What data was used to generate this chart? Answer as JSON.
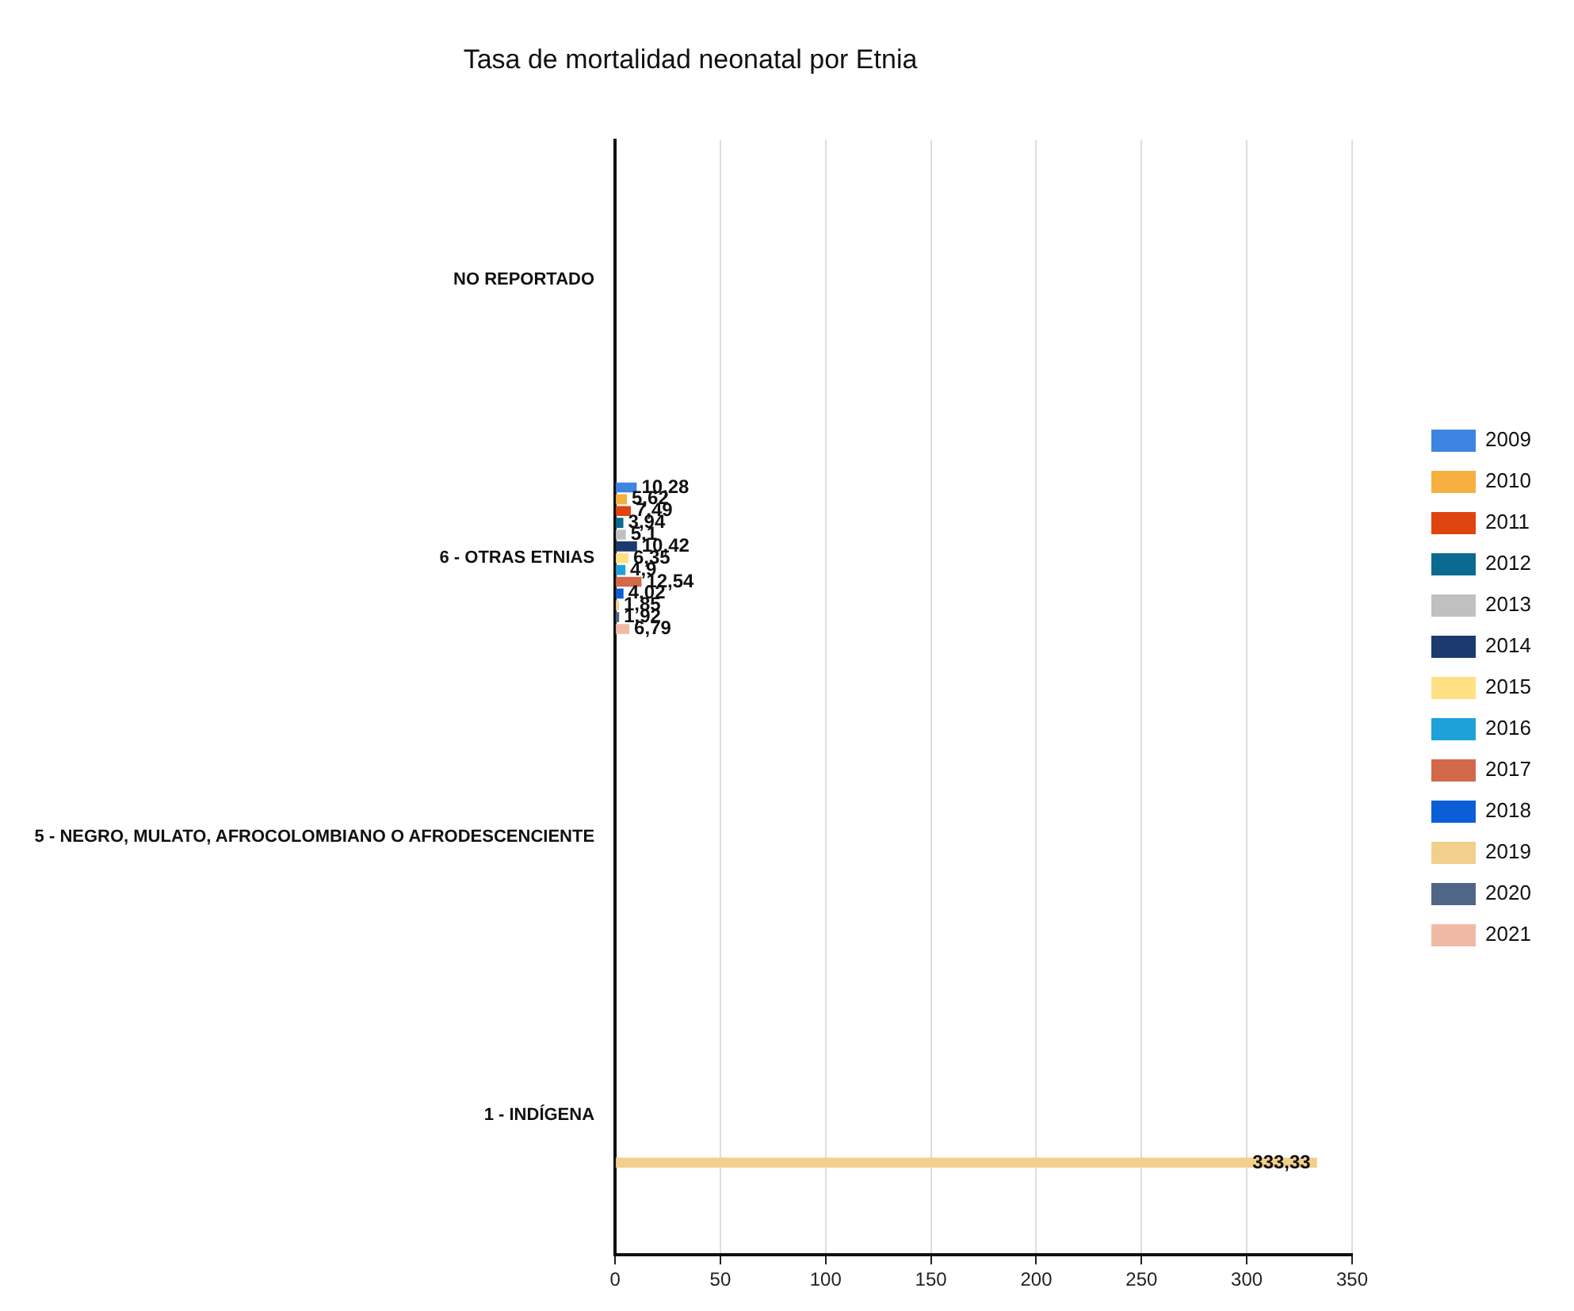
{
  "chart_data": {
    "type": "bar",
    "orientation": "horizontal",
    "title": "Tasa de mortalidad neonatal por Etnia",
    "categories": [
      "NO REPORTADO",
      "6 - OTRAS ETNIAS",
      "5 - NEGRO, MULATO, AFROCOLOMBIANO O AFRODESCENCIENTE",
      "1 - INDÍGENA"
    ],
    "series": [
      {
        "name": "2009",
        "color": "#3d85e0",
        "values": [
          null,
          10.28,
          null,
          null
        ],
        "value_labels": [
          null,
          "10,28",
          null,
          null
        ]
      },
      {
        "name": "2010",
        "color": "#f6b040",
        "values": [
          null,
          5.62,
          null,
          null
        ],
        "value_labels": [
          null,
          "5,62",
          null,
          null
        ]
      },
      {
        "name": "2011",
        "color": "#e0440e",
        "values": [
          null,
          7.49,
          null,
          null
        ],
        "value_labels": [
          null,
          "7,49",
          null,
          null
        ]
      },
      {
        "name": "2012",
        "color": "#0b6a8f",
        "values": [
          null,
          3.94,
          null,
          null
        ],
        "value_labels": [
          null,
          "3,94",
          null,
          null
        ]
      },
      {
        "name": "2013",
        "color": "#c0c0c0",
        "values": [
          null,
          5.1,
          null,
          null
        ],
        "value_labels": [
          null,
          "5,1",
          null,
          null
        ]
      },
      {
        "name": "2014",
        "color": "#1c3a6e",
        "values": [
          null,
          10.42,
          null,
          null
        ],
        "value_labels": [
          null,
          "10,42",
          null,
          null
        ]
      },
      {
        "name": "2015",
        "color": "#ffe082",
        "values": [
          null,
          6.35,
          null,
          null
        ],
        "value_labels": [
          null,
          "6,35",
          null,
          null
        ]
      },
      {
        "name": "2016",
        "color": "#1ea1d8",
        "values": [
          null,
          4.9,
          null,
          null
        ],
        "value_labels": [
          null,
          "4,9",
          null,
          null
        ]
      },
      {
        "name": "2017",
        "color": "#d2694b",
        "values": [
          null,
          12.54,
          null,
          null
        ],
        "value_labels": [
          null,
          "12,54",
          null,
          null
        ]
      },
      {
        "name": "2018",
        "color": "#0b5fd6",
        "values": [
          null,
          4.02,
          null,
          null
        ],
        "value_labels": [
          null,
          "4,02",
          null,
          null
        ]
      },
      {
        "name": "2019",
        "color": "#f2cf8c",
        "values": [
          null,
          1.85,
          null,
          333.33
        ],
        "value_labels": [
          null,
          "1,85",
          null,
          "333,33"
        ]
      },
      {
        "name": "2020",
        "color": "#4f6687",
        "values": [
          null,
          1.92,
          null,
          null
        ],
        "value_labels": [
          null,
          "1,92",
          null,
          null
        ]
      },
      {
        "name": "2021",
        "color": "#f0b9a6",
        "values": [
          null,
          6.79,
          null,
          null
        ],
        "value_labels": [
          null,
          "6,79",
          null,
          null
        ]
      }
    ],
    "xlim": [
      0,
      350
    ],
    "xticks": [
      0,
      50,
      100,
      150,
      200,
      250,
      300,
      350
    ],
    "grid": "x",
    "legend": "right"
  }
}
